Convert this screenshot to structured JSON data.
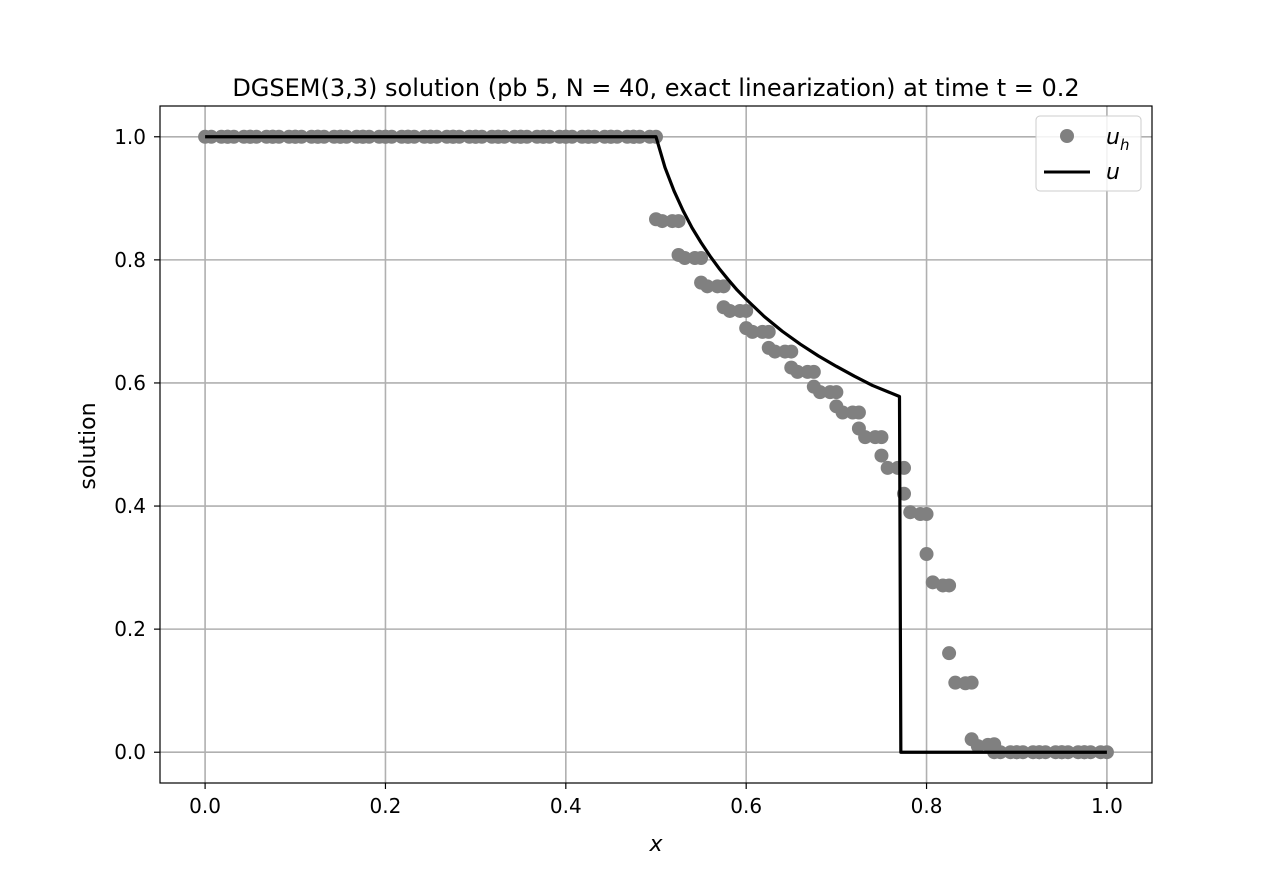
{
  "chart_data": {
    "type": "line",
    "title": "DGSEM(3,3) solution (pb 5, N = 40, exact linearization) at time t = 0.2",
    "xlabel": "x",
    "ylabel": "solution",
    "xlim": [
      -0.05,
      1.05
    ],
    "ylim": [
      -0.05,
      1.05
    ],
    "xticks": [
      0.0,
      0.2,
      0.4,
      0.6,
      0.8,
      1.0
    ],
    "xtick_labels": [
      "0.0",
      "0.2",
      "0.4",
      "0.6",
      "0.8",
      "1.0"
    ],
    "yticks": [
      0.0,
      0.2,
      0.4,
      0.6,
      0.8,
      1.0
    ],
    "ytick_labels": [
      "0.0",
      "0.2",
      "0.4",
      "0.6",
      "0.8",
      "1.0"
    ],
    "grid": true,
    "legend_position": "top-right",
    "series": [
      {
        "name": "u_h",
        "legend_main": "u",
        "legend_sub": "h",
        "kind": "scatter",
        "color": "#808080",
        "points": [
          [
            0.0,
            1.0
          ],
          [
            0.0069,
            1.0
          ],
          [
            0.0181,
            1.0
          ],
          [
            0.025,
            1.0
          ],
          [
            0.025,
            1.0
          ],
          [
            0.0319,
            1.0
          ],
          [
            0.0431,
            1.0
          ],
          [
            0.05,
            1.0
          ],
          [
            0.05,
            1.0
          ],
          [
            0.0569,
            1.0
          ],
          [
            0.0681,
            1.0
          ],
          [
            0.075,
            1.0
          ],
          [
            0.075,
            1.0
          ],
          [
            0.0819,
            1.0
          ],
          [
            0.0931,
            1.0
          ],
          [
            0.1,
            1.0
          ],
          [
            0.1,
            1.0
          ],
          [
            0.1069,
            1.0
          ],
          [
            0.1181,
            1.0
          ],
          [
            0.125,
            1.0
          ],
          [
            0.125,
            1.0
          ],
          [
            0.1319,
            1.0
          ],
          [
            0.1431,
            1.0
          ],
          [
            0.15,
            1.0
          ],
          [
            0.15,
            1.0
          ],
          [
            0.1569,
            1.0
          ],
          [
            0.1681,
            1.0
          ],
          [
            0.175,
            1.0
          ],
          [
            0.175,
            1.0
          ],
          [
            0.1819,
            1.0
          ],
          [
            0.1931,
            1.0
          ],
          [
            0.2,
            1.0
          ],
          [
            0.2,
            1.0
          ],
          [
            0.2069,
            1.0
          ],
          [
            0.2181,
            1.0
          ],
          [
            0.225,
            1.0
          ],
          [
            0.225,
            1.0
          ],
          [
            0.2319,
            1.0
          ],
          [
            0.2431,
            1.0
          ],
          [
            0.25,
            1.0
          ],
          [
            0.25,
            1.0
          ],
          [
            0.2569,
            1.0
          ],
          [
            0.2681,
            1.0
          ],
          [
            0.275,
            1.0
          ],
          [
            0.275,
            1.0
          ],
          [
            0.2819,
            1.0
          ],
          [
            0.2931,
            1.0
          ],
          [
            0.3,
            1.0
          ],
          [
            0.3,
            1.0
          ],
          [
            0.3069,
            1.0
          ],
          [
            0.3181,
            1.0
          ],
          [
            0.325,
            1.0
          ],
          [
            0.325,
            1.0
          ],
          [
            0.3319,
            1.0
          ],
          [
            0.3431,
            1.0
          ],
          [
            0.35,
            1.0
          ],
          [
            0.35,
            1.0
          ],
          [
            0.3569,
            1.0
          ],
          [
            0.3681,
            1.0
          ],
          [
            0.375,
            1.0
          ],
          [
            0.375,
            1.0
          ],
          [
            0.3819,
            1.0
          ],
          [
            0.3931,
            1.0
          ],
          [
            0.4,
            1.0
          ],
          [
            0.4,
            1.0
          ],
          [
            0.4069,
            1.0
          ],
          [
            0.4181,
            1.0
          ],
          [
            0.425,
            1.0
          ],
          [
            0.425,
            1.0
          ],
          [
            0.4319,
            1.0
          ],
          [
            0.4431,
            1.0
          ],
          [
            0.45,
            1.0
          ],
          [
            0.45,
            1.0
          ],
          [
            0.4569,
            1.0
          ],
          [
            0.4681,
            1.0
          ],
          [
            0.475,
            1.0
          ],
          [
            0.475,
            1.0
          ],
          [
            0.4819,
            1.0
          ],
          [
            0.4931,
            1.0
          ],
          [
            0.5,
            1.0
          ],
          [
            0.5,
            0.866
          ],
          [
            0.5069,
            0.863
          ],
          [
            0.5181,
            0.863
          ],
          [
            0.525,
            0.863
          ],
          [
            0.525,
            0.808
          ],
          [
            0.5319,
            0.803
          ],
          [
            0.5431,
            0.803
          ],
          [
            0.55,
            0.803
          ],
          [
            0.55,
            0.763
          ],
          [
            0.5569,
            0.757
          ],
          [
            0.5681,
            0.757
          ],
          [
            0.575,
            0.757
          ],
          [
            0.575,
            0.723
          ],
          [
            0.5819,
            0.717
          ],
          [
            0.5931,
            0.717
          ],
          [
            0.6,
            0.717
          ],
          [
            0.6,
            0.689
          ],
          [
            0.6069,
            0.683
          ],
          [
            0.6181,
            0.683
          ],
          [
            0.625,
            0.683
          ],
          [
            0.625,
            0.657
          ],
          [
            0.6319,
            0.651
          ],
          [
            0.6431,
            0.651
          ],
          [
            0.65,
            0.651
          ],
          [
            0.65,
            0.625
          ],
          [
            0.6569,
            0.618
          ],
          [
            0.6681,
            0.618
          ],
          [
            0.675,
            0.618
          ],
          [
            0.675,
            0.594
          ],
          [
            0.6819,
            0.585
          ],
          [
            0.6931,
            0.585
          ],
          [
            0.7,
            0.585
          ],
          [
            0.7,
            0.562
          ],
          [
            0.7069,
            0.552
          ],
          [
            0.7181,
            0.552
          ],
          [
            0.725,
            0.552
          ],
          [
            0.725,
            0.526
          ],
          [
            0.7319,
            0.512
          ],
          [
            0.7431,
            0.512
          ],
          [
            0.75,
            0.512
          ],
          [
            0.75,
            0.482
          ],
          [
            0.7569,
            0.462
          ],
          [
            0.7681,
            0.462
          ],
          [
            0.775,
            0.462
          ],
          [
            0.775,
            0.42
          ],
          [
            0.7819,
            0.39
          ],
          [
            0.7931,
            0.387
          ],
          [
            0.8,
            0.387
          ],
          [
            0.8,
            0.322
          ],
          [
            0.8069,
            0.276
          ],
          [
            0.8181,
            0.271
          ],
          [
            0.825,
            0.271
          ],
          [
            0.825,
            0.161
          ],
          [
            0.8319,
            0.113
          ],
          [
            0.8431,
            0.112
          ],
          [
            0.85,
            0.113
          ],
          [
            0.85,
            0.021
          ],
          [
            0.8569,
            0.01
          ],
          [
            0.8681,
            0.012
          ],
          [
            0.875,
            0.013
          ],
          [
            0.875,
            0.0
          ],
          [
            0.8819,
            0.0
          ],
          [
            0.8931,
            0.0
          ],
          [
            0.9,
            0.0
          ],
          [
            0.9,
            0.0
          ],
          [
            0.9069,
            0.0
          ],
          [
            0.9181,
            0.0
          ],
          [
            0.925,
            0.0
          ],
          [
            0.925,
            0.0
          ],
          [
            0.9319,
            0.0
          ],
          [
            0.9431,
            0.0
          ],
          [
            0.95,
            0.0
          ],
          [
            0.95,
            0.0
          ],
          [
            0.9569,
            0.0
          ],
          [
            0.9681,
            0.0
          ],
          [
            0.975,
            0.0
          ],
          [
            0.975,
            0.0
          ],
          [
            0.9819,
            0.0
          ],
          [
            0.9931,
            0.0
          ],
          [
            1.0,
            0.0
          ]
        ]
      },
      {
        "name": "u",
        "legend_main": "u",
        "legend_sub": "",
        "kind": "line",
        "color": "#000000",
        "points": [
          [
            0.0,
            1.0
          ],
          [
            0.5,
            1.0
          ],
          [
            0.51,
            0.95
          ],
          [
            0.52,
            0.912
          ],
          [
            0.53,
            0.88
          ],
          [
            0.54,
            0.852
          ],
          [
            0.55,
            0.828
          ],
          [
            0.56,
            0.806
          ],
          [
            0.57,
            0.786
          ],
          [
            0.58,
            0.768
          ],
          [
            0.59,
            0.751
          ],
          [
            0.6,
            0.736
          ],
          [
            0.62,
            0.708
          ],
          [
            0.64,
            0.684
          ],
          [
            0.66,
            0.663
          ],
          [
            0.68,
            0.644
          ],
          [
            0.7,
            0.627
          ],
          [
            0.72,
            0.611
          ],
          [
            0.74,
            0.596
          ],
          [
            0.77,
            0.578
          ],
          [
            0.7715,
            0.0
          ],
          [
            1.0,
            0.0
          ]
        ]
      }
    ]
  }
}
